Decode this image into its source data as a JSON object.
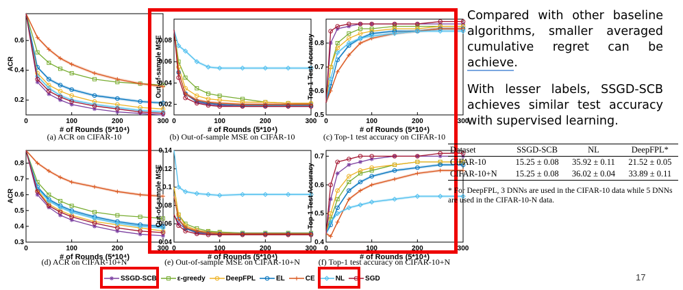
{
  "slide_text": {
    "para1": "Compared  with other baseline algorithms, smaller averaged cumulative regret can be ",
    "para1_underlined": "achieve",
    "para1_end": ".",
    "para2": "With lesser labels, SSGD-SCB achieves similar test accuracy with supervised learning."
  },
  "page_number": "17",
  "legend": [
    {
      "name": "SSGD-SCB",
      "color": "#7b3fa0",
      "marker": "star"
    },
    {
      "name": "ε-greedy",
      "color": "#77ac30",
      "marker": "square"
    },
    {
      "name": "DeepFPL",
      "color": "#edb120",
      "marker": "circle"
    },
    {
      "name": "EL",
      "color": "#0072bd",
      "marker": "circle"
    },
    {
      "name": "CE",
      "color": "#d95319",
      "marker": "plus"
    },
    {
      "name": "NL",
      "color": "#4dbeee",
      "marker": "diamond"
    },
    {
      "name": "SGD",
      "color": "#a2142f",
      "marker": "circle"
    }
  ],
  "table": {
    "headers": [
      "Dataset",
      "SSGD-SCB",
      "NL",
      "DeepFPL*"
    ],
    "rows": [
      [
        "CIFAR-10",
        "15.25 ± 0.08",
        "35.92 ± 0.11",
        "21.52 ± 0.05"
      ],
      [
        "CIFAR-10+N",
        "15.25 ± 0.08",
        "36.02 ± 0.04",
        "33.89 ± 0.11"
      ]
    ],
    "footnote": "* For DeepFPL, 3 DNNs are used in the CIFAR-10 data while 5 DNNs are used in the CIFAR-10-N data."
  },
  "chart_data": [
    {
      "type": "line",
      "caption": "(a) ACR on CIFAR-10",
      "ylabel": "ACR",
      "xlabel": "# of Rounds (5*10⁴)",
      "xlim": [
        0,
        300
      ],
      "ylim": [
        0.1,
        0.78
      ],
      "yticks": [
        0.2,
        0.4,
        0.6
      ],
      "xticks": [
        0,
        100,
        200,
        300
      ],
      "x": [
        0,
        25,
        50,
        75,
        100,
        150,
        200,
        250,
        300
      ],
      "series": [
        {
          "name": "SSGD-SCB",
          "values": [
            0.78,
            0.32,
            0.24,
            0.2,
            0.17,
            0.14,
            0.12,
            0.11,
            0.1
          ]
        },
        {
          "name": "ε-greedy",
          "values": [
            0.78,
            0.52,
            0.45,
            0.41,
            0.38,
            0.34,
            0.32,
            0.31,
            0.3
          ]
        },
        {
          "name": "DeepFPL",
          "values": [
            0.78,
            0.38,
            0.3,
            0.26,
            0.23,
            0.19,
            0.17,
            0.15,
            0.14
          ]
        },
        {
          "name": "EL",
          "values": [
            0.78,
            0.42,
            0.34,
            0.3,
            0.27,
            0.23,
            0.21,
            0.19,
            0.18
          ]
        },
        {
          "name": "CE",
          "values": [
            0.78,
            0.62,
            0.54,
            0.48,
            0.44,
            0.38,
            0.34,
            0.31,
            0.29
          ]
        },
        {
          "name": "NL",
          "values": [
            0.78,
            0.36,
            0.28,
            0.23,
            0.2,
            0.17,
            0.15,
            0.13,
            0.12
          ]
        },
        {
          "name": "SGD",
          "values": [
            0.78,
            0.34,
            0.26,
            0.22,
            0.19,
            0.16,
            0.14,
            0.12,
            0.11
          ]
        }
      ]
    },
    {
      "type": "line",
      "caption": "(b) Out-of-sample MSE on CIFAR-10",
      "ylabel": "Out-of-sample MSE",
      "xlabel": "# of Rounds (5*10⁴)",
      "xlim": [
        0,
        300
      ],
      "ylim": [
        0.01,
        0.1
      ],
      "yticks": [
        0.02,
        0.04,
        0.06,
        0.08
      ],
      "xticks": [
        0,
        100,
        200,
        300
      ],
      "x": [
        0,
        10,
        25,
        50,
        75,
        100,
        150,
        200,
        250,
        300
      ],
      "series": [
        {
          "name": "SSGD-SCB",
          "values": [
            0.09,
            0.05,
            0.03,
            0.022,
            0.02,
            0.019,
            0.018,
            0.018,
            0.018,
            0.018
          ]
        },
        {
          "name": "ε-greedy",
          "values": [
            0.09,
            0.06,
            0.045,
            0.035,
            0.03,
            0.028,
            0.025,
            0.022,
            0.021,
            0.02
          ]
        },
        {
          "name": "DeepFPL",
          "values": [
            0.09,
            0.055,
            0.035,
            0.028,
            0.025,
            0.024,
            0.022,
            0.022,
            0.021,
            0.021
          ]
        },
        {
          "name": "EL",
          "values": [
            0.09,
            0.05,
            0.03,
            0.023,
            0.021,
            0.02,
            0.019,
            0.019,
            0.019,
            0.019
          ]
        },
        {
          "name": "CE",
          "values": [
            0.09,
            0.05,
            0.03,
            0.024,
            0.022,
            0.021,
            0.02,
            0.02,
            0.02,
            0.02
          ]
        },
        {
          "name": "NL",
          "values": [
            0.09,
            0.075,
            0.07,
            0.06,
            0.055,
            0.054,
            0.054,
            0.054,
            0.054,
            0.054
          ]
        },
        {
          "name": "SGD",
          "values": [
            0.09,
            0.045,
            0.026,
            0.021,
            0.019,
            0.018,
            0.018,
            0.018,
            0.018,
            0.018
          ]
        }
      ]
    },
    {
      "type": "line",
      "caption": "(c) Top-1 test accuracy on CIFAR-10",
      "ylabel": "Top-1 Test Accuracy",
      "xlabel": "# of Rounds (5*10⁴)",
      "xlim": [
        0,
        300
      ],
      "ylim": [
        0.5,
        0.9
      ],
      "yticks": [
        0.5,
        0.6,
        0.7,
        0.8
      ],
      "xticks": [
        0,
        100,
        200,
        300
      ],
      "x": [
        0,
        10,
        25,
        50,
        75,
        100,
        150,
        200,
        250,
        300
      ],
      "series": [
        {
          "name": "SSGD-SCB",
          "values": [
            0.55,
            0.8,
            0.86,
            0.87,
            0.88,
            0.88,
            0.88,
            0.88,
            0.88,
            0.88
          ]
        },
        {
          "name": "ε-greedy",
          "values": [
            0.55,
            0.7,
            0.8,
            0.84,
            0.86,
            0.86,
            0.87,
            0.87,
            0.87,
            0.87
          ]
        },
        {
          "name": "DeepFPL",
          "values": [
            0.55,
            0.7,
            0.78,
            0.82,
            0.84,
            0.85,
            0.86,
            0.86,
            0.87,
            0.87
          ]
        },
        {
          "name": "EL",
          "values": [
            0.55,
            0.62,
            0.73,
            0.79,
            0.82,
            0.84,
            0.85,
            0.85,
            0.86,
            0.86
          ]
        },
        {
          "name": "CE",
          "values": [
            0.55,
            0.6,
            0.68,
            0.75,
            0.8,
            0.82,
            0.84,
            0.85,
            0.86,
            0.86
          ]
        },
        {
          "name": "NL",
          "values": [
            0.55,
            0.65,
            0.76,
            0.8,
            0.82,
            0.83,
            0.84,
            0.85,
            0.85,
            0.85
          ]
        },
        {
          "name": "SGD",
          "values": [
            0.55,
            0.85,
            0.87,
            0.88,
            0.88,
            0.88,
            0.88,
            0.88,
            0.89,
            0.89
          ]
        }
      ]
    },
    {
      "type": "line",
      "caption": "(d) ACR on CIFAR-10+N",
      "ylabel": "ACR",
      "xlabel": "# of Rounds (5*10⁴)",
      "xlim": [
        0,
        300
      ],
      "ylim": [
        0.3,
        0.88
      ],
      "yticks": [
        0.3,
        0.4,
        0.5,
        0.6,
        0.7,
        0.8
      ],
      "xticks": [
        0,
        100,
        200,
        300
      ],
      "x": [
        0,
        25,
        50,
        75,
        100,
        150,
        200,
        250,
        300
      ],
      "series": [
        {
          "name": "SSGD-SCB",
          "values": [
            0.88,
            0.6,
            0.52,
            0.47,
            0.44,
            0.4,
            0.37,
            0.35,
            0.34
          ]
        },
        {
          "name": "ε-greedy",
          "values": [
            0.88,
            0.68,
            0.6,
            0.56,
            0.53,
            0.49,
            0.47,
            0.46,
            0.45
          ]
        },
        {
          "name": "DeepFPL",
          "values": [
            0.88,
            0.63,
            0.54,
            0.5,
            0.47,
            0.43,
            0.41,
            0.39,
            0.37
          ]
        },
        {
          "name": "EL",
          "values": [
            0.88,
            0.65,
            0.57,
            0.53,
            0.5,
            0.46,
            0.43,
            0.41,
            0.4
          ]
        },
        {
          "name": "CE",
          "values": [
            0.88,
            0.8,
            0.75,
            0.71,
            0.68,
            0.65,
            0.62,
            0.6,
            0.59
          ]
        },
        {
          "name": "NL",
          "values": [
            0.88,
            0.64,
            0.56,
            0.52,
            0.49,
            0.45,
            0.42,
            0.4,
            0.39
          ]
        },
        {
          "name": "SGD",
          "values": [
            0.88,
            0.62,
            0.53,
            0.49,
            0.46,
            0.42,
            0.39,
            0.37,
            0.36
          ]
        }
      ]
    },
    {
      "type": "line",
      "caption": "(e) Out-of-sample MSE on CIFAR-10+N",
      "ylabel": "Out-of-sample MSE",
      "xlabel": "# of Rounds (5*10⁴)",
      "xlim": [
        0,
        300
      ],
      "ylim": [
        0.04,
        0.14
      ],
      "yticks": [
        0.04,
        0.06,
        0.08,
        0.1,
        0.12,
        0.14
      ],
      "xticks": [
        0,
        100,
        200,
        300
      ],
      "x": [
        0,
        10,
        25,
        50,
        75,
        100,
        150,
        200,
        250,
        300
      ],
      "series": [
        {
          "name": "SSGD-SCB",
          "values": [
            0.07,
            0.06,
            0.055,
            0.05,
            0.049,
            0.048,
            0.048,
            0.048,
            0.048,
            0.048
          ]
        },
        {
          "name": "ε-greedy",
          "values": [
            0.1,
            0.07,
            0.06,
            0.055,
            0.052,
            0.051,
            0.05,
            0.05,
            0.05,
            0.05
          ]
        },
        {
          "name": "DeepFPL",
          "values": [
            0.1,
            0.07,
            0.058,
            0.053,
            0.051,
            0.05,
            0.049,
            0.049,
            0.049,
            0.049
          ]
        },
        {
          "name": "EL",
          "values": [
            0.09,
            0.065,
            0.055,
            0.051,
            0.05,
            0.049,
            0.049,
            0.049,
            0.049,
            0.049
          ]
        },
        {
          "name": "CE",
          "values": [
            0.09,
            0.065,
            0.056,
            0.052,
            0.05,
            0.049,
            0.049,
            0.049,
            0.049,
            0.049
          ]
        },
        {
          "name": "NL",
          "values": [
            0.14,
            0.1,
            0.095,
            0.093,
            0.092,
            0.091,
            0.092,
            0.092,
            0.092,
            0.092
          ]
        },
        {
          "name": "SGD",
          "values": [
            0.07,
            0.058,
            0.052,
            0.049,
            0.048,
            0.048,
            0.048,
            0.048,
            0.048,
            0.048
          ]
        }
      ]
    },
    {
      "type": "line",
      "caption": "(f) Top-1 test accuracy on CIFAR-10+N",
      "ylabel": "Top-1 Test Accuracy",
      "xlabel": "# of Rounds (5*10⁴)",
      "xlim": [
        0,
        300
      ],
      "ylim": [
        0.4,
        0.72
      ],
      "yticks": [
        0.4,
        0.5,
        0.6,
        0.7
      ],
      "xticks": [
        0,
        100,
        200,
        300
      ],
      "x": [
        0,
        10,
        25,
        50,
        75,
        100,
        150,
        200,
        250,
        300
      ],
      "series": [
        {
          "name": "SSGD-SCB",
          "values": [
            0.43,
            0.55,
            0.64,
            0.67,
            0.68,
            0.69,
            0.7,
            0.7,
            0.7,
            0.7
          ]
        },
        {
          "name": "ε-greedy",
          "values": [
            0.43,
            0.48,
            0.55,
            0.61,
            0.64,
            0.65,
            0.67,
            0.68,
            0.68,
            0.68
          ]
        },
        {
          "name": "DeepFPL",
          "values": [
            0.43,
            0.5,
            0.58,
            0.63,
            0.65,
            0.66,
            0.67,
            0.68,
            0.68,
            0.68
          ]
        },
        {
          "name": "EL",
          "values": [
            0.43,
            0.46,
            0.52,
            0.58,
            0.61,
            0.63,
            0.65,
            0.66,
            0.67,
            0.67
          ]
        },
        {
          "name": "CE",
          "values": [
            0.43,
            0.42,
            0.47,
            0.55,
            0.58,
            0.6,
            0.62,
            0.64,
            0.65,
            0.65
          ]
        },
        {
          "name": "NL",
          "values": [
            0.43,
            0.47,
            0.5,
            0.52,
            0.53,
            0.54,
            0.55,
            0.56,
            0.56,
            0.56
          ]
        },
        {
          "name": "SGD",
          "values": [
            0.43,
            0.6,
            0.68,
            0.69,
            0.7,
            0.7,
            0.7,
            0.7,
            0.71,
            0.71
          ]
        }
      ]
    }
  ]
}
